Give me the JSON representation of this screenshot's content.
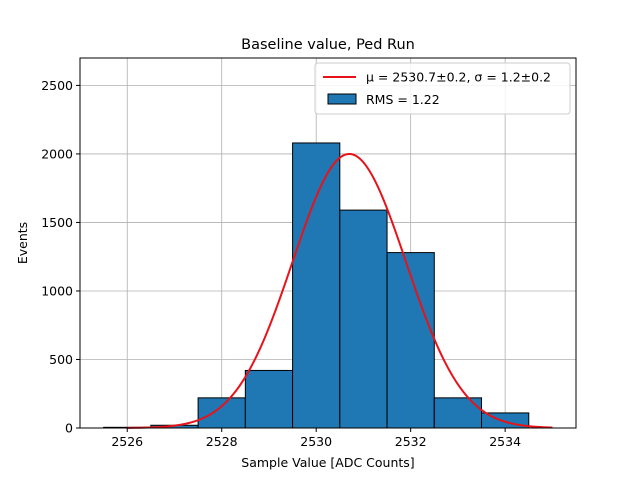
{
  "chart_data": {
    "type": "bar",
    "title": "Baseline value, Ped Run",
    "xlabel": "Sample Value [ADC Counts]",
    "ylabel": "Events",
    "xlim": [
      2525.0,
      2535.5
    ],
    "ylim": [
      0,
      2700
    ],
    "xticks": [
      2526,
      2528,
      2530,
      2532,
      2534
    ],
    "yticks": [
      0,
      500,
      1000,
      1500,
      2000,
      2500
    ],
    "grid": true,
    "legend_position": "top-right",
    "histogram": {
      "name": "RMS = 1.22",
      "bin_edges": [
        2525.5,
        2526.5,
        2527.5,
        2528.5,
        2529.5,
        2530.5,
        2531.5,
        2532.5,
        2533.5,
        2534.5
      ],
      "counts": [
        5,
        20,
        220,
        420,
        2080,
        1590,
        1280,
        220,
        110
      ]
    },
    "fit": {
      "name_mu": "μ = 2530.7±0.2",
      "name_sigma": "σ = 1.2±0.2",
      "mu": 2530.7,
      "sigma": 1.2,
      "amplitude": 2000,
      "x_range": [
        2526.0,
        2535.0
      ]
    },
    "colors": {
      "bar": "#1f77b4",
      "fit": "#e8131a",
      "grid": "#b0b0b0"
    }
  }
}
